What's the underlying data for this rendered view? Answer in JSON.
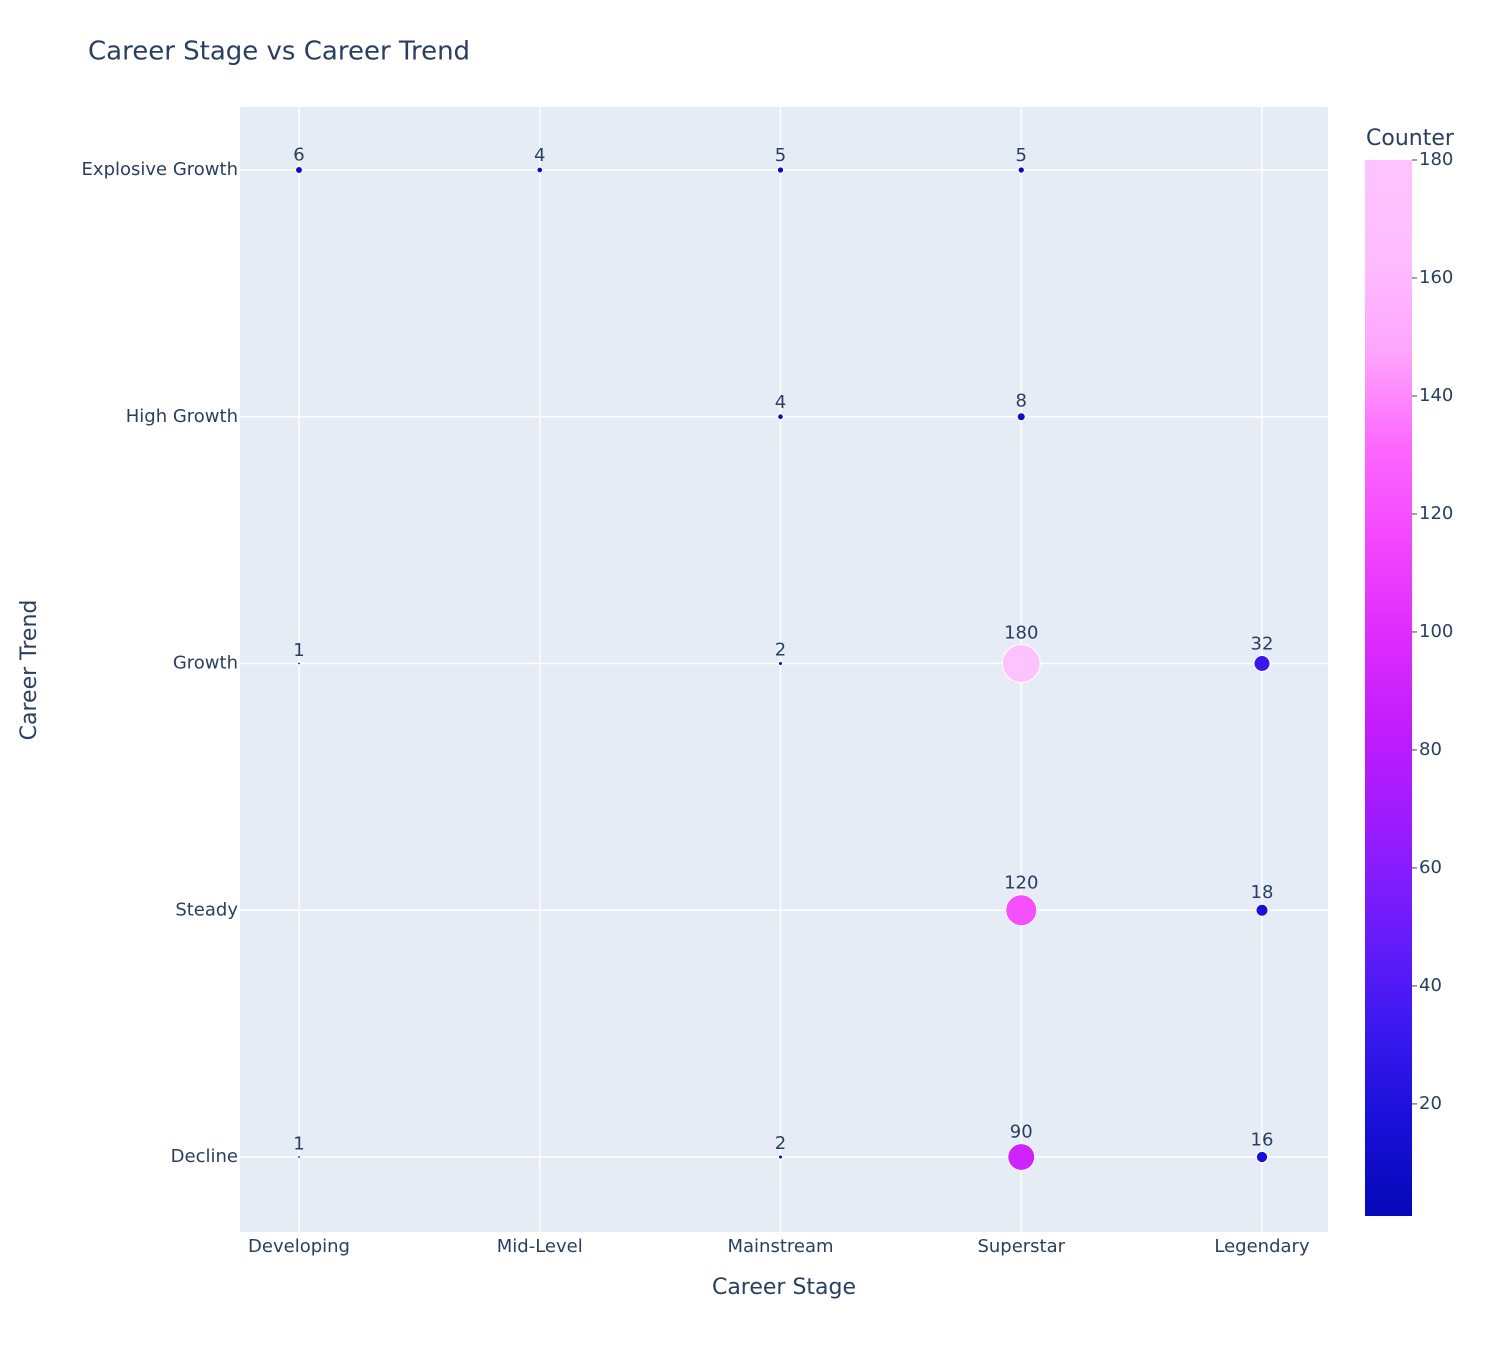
{
  "chart_data": {
    "type": "scatter",
    "title": "Career Stage vs Career Trend",
    "x_label": "Career Stage",
    "y_label": "Career Trend",
    "categories": [
      "Developing",
      "Mid-Level",
      "Mainstream",
      "Superstar",
      "Legendary"
    ],
    "y_categories": [
      "Explosive Growth",
      "High Growth",
      "Growth",
      "Steady",
      "Decline"
    ],
    "series": [
      {
        "x": [
          "Developing",
          "Mid-Level",
          "Mainstream",
          "Superstar",
          "Mainstream",
          "Superstar",
          "Developing",
          "Mainstream",
          "Superstar",
          "Legendary",
          "Superstar",
          "Legendary",
          "Developing",
          "Mainstream",
          "Superstar",
          "Legendary"
        ],
        "y": [
          "Explosive Growth",
          "Explosive Growth",
          "Explosive Growth",
          "Explosive Growth",
          "High Growth",
          "High Growth",
          "Growth",
          "Growth",
          "Growth",
          "Growth",
          "Steady",
          "Steady",
          "Decline",
          "Decline",
          "Decline",
          "Decline"
        ],
        "values": [
          6,
          4,
          5,
          5,
          4,
          8,
          1,
          2,
          180,
          32,
          120,
          18,
          1,
          2,
          90,
          16
        ]
      }
    ],
    "grid": true,
    "colorbar": {
      "title": "Counter",
      "lim": [
        1,
        180
      ],
      "ticks": [
        20,
        40,
        60,
        80,
        100,
        120,
        140,
        160,
        180
      ]
    },
    "colorscale": [
      "#0508b8",
      "#1910d8",
      "#3c19f0",
      "#6b1cfb",
      "#981cfd",
      "#bf1cfd",
      "#dd2bfd",
      "#f246fe",
      "#fc67fd",
      "#fea5fd",
      "#febefe",
      "#fec3fe"
    ]
  }
}
